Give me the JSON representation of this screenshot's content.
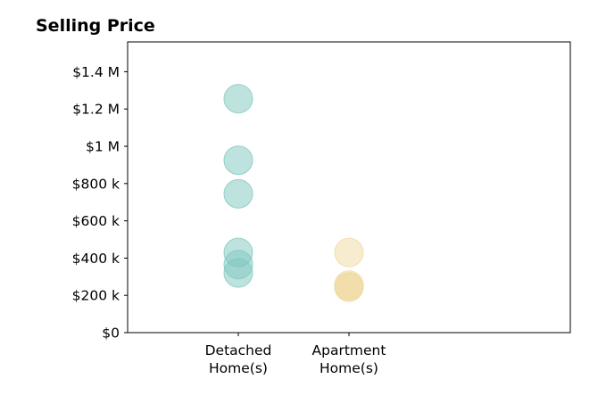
{
  "chart_data": {
    "type": "scatter",
    "title": "Selling Price",
    "xlabel": "",
    "ylabel": "",
    "categories": [
      "Detached\nHome(s)",
      "Apartment\nHome(s)"
    ],
    "xlim": [
      -1,
      3
    ],
    "ylim": [
      0,
      1560000
    ],
    "yticks": [
      0,
      200000,
      400000,
      600000,
      800000,
      1000000,
      1200000,
      1400000
    ],
    "ytick_labels": [
      "$0",
      "$200 k",
      "$400 k",
      "$600 k",
      "$800 k",
      "$1 M",
      "$1.2 M",
      "$1.4 M"
    ],
    "grid": false,
    "legend": "none",
    "series": [
      {
        "category_index": 0,
        "color": "#7ec8bf",
        "alpha": 0.5,
        "values": [
          1255000,
          925000,
          745000,
          430000,
          365000,
          320000
        ]
      },
      {
        "category_index": 1,
        "color": "#f0d9a0",
        "alpha": 0.5,
        "values": [
          430000,
          255000,
          245000,
          245000
        ]
      }
    ]
  }
}
